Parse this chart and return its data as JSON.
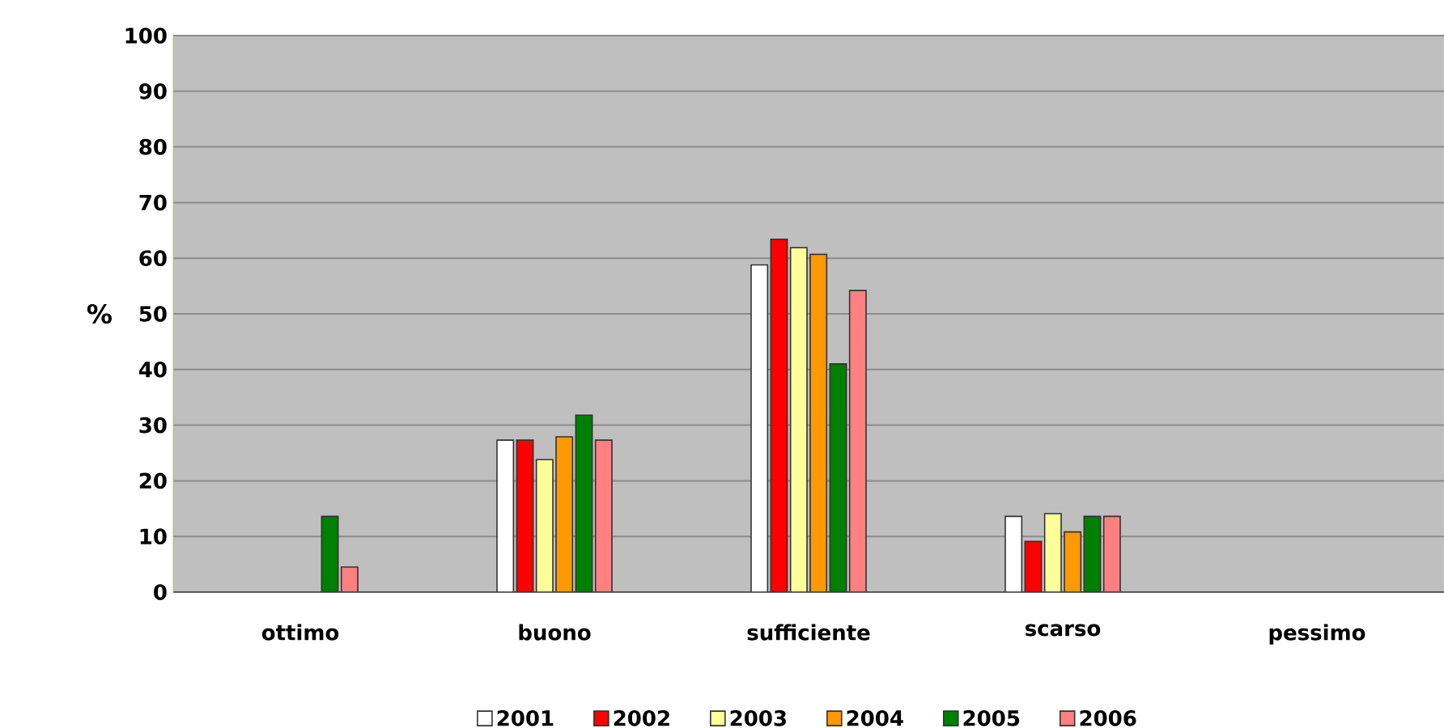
{
  "chart_data": {
    "type": "bar",
    "ylabel": "%",
    "categories": [
      "ottimo",
      "buono",
      "sufficiente",
      "scarso",
      "pessimo"
    ],
    "series": [
      {
        "name": "2001",
        "color": "#ffffff",
        "values": [
          null,
          27.3,
          58.8,
          13.6,
          null
        ]
      },
      {
        "name": "2002",
        "color": "#ff0000",
        "values": [
          null,
          27.3,
          63.4,
          9.1,
          null
        ]
      },
      {
        "name": "2003",
        "color": "#ffff99",
        "values": [
          null,
          23.8,
          61.9,
          14.1,
          null
        ]
      },
      {
        "name": "2004",
        "color": "#ff9900",
        "values": [
          null,
          27.9,
          60.7,
          10.8,
          null
        ]
      },
      {
        "name": "2005",
        "color": "#008000",
        "values": [
          13.6,
          31.8,
          41.0,
          13.6,
          null
        ]
      },
      {
        "name": "2006",
        "color": "#ff8080",
        "values": [
          4.5,
          27.3,
          54.2,
          13.6,
          null
        ]
      }
    ],
    "ylim": [
      0,
      100
    ],
    "yticks": [
      0,
      10,
      20,
      30,
      40,
      50,
      60,
      70,
      80,
      90,
      100
    ],
    "grid": "y",
    "legend": "bottom"
  }
}
